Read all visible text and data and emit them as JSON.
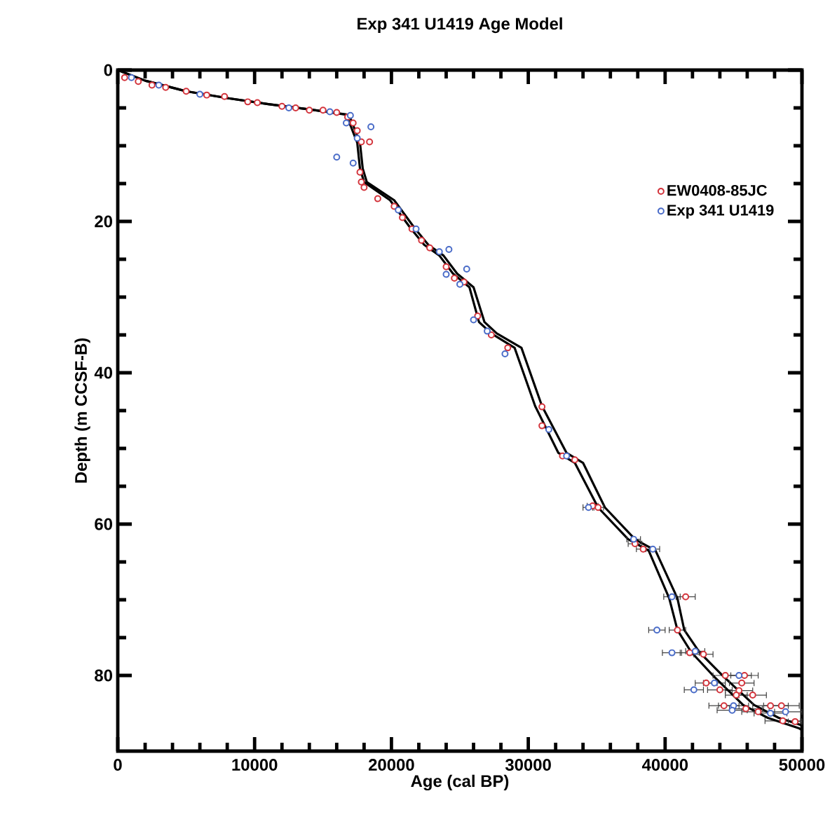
{
  "chart_data": {
    "type": "line",
    "title": "Exp 341 U1419 Age Model",
    "xlabel": "Age (cal BP)",
    "ylabel": "Depth (m CCSF-B)",
    "xlim": [
      0,
      50000
    ],
    "xticks": [
      0,
      10000,
      20000,
      30000,
      40000,
      50000
    ],
    "ylim": [
      90,
      0
    ],
    "yticks": [
      0,
      20,
      40,
      60,
      80
    ],
    "grid": false,
    "legend": "top right",
    "series": [
      {
        "color": "#000000",
        "marker": "none",
        "x": [
          0,
          2000,
          5000,
          8000,
          11000,
          14000,
          16700,
          17500,
          17700,
          18000,
          19900,
          21400,
          22400,
          23500,
          24500,
          25700,
          26400,
          27300,
          29000,
          30500,
          32200,
          33400,
          35100,
          37300,
          38800,
          40300,
          40900,
          41900,
          43600,
          45700,
          47500,
          49800,
          50000
        ],
        "values": [
          0,
          1.4,
          2.8,
          3.7,
          4.5,
          5.2,
          5.9,
          9.6,
          13,
          14.8,
          17.2,
          20.9,
          23.1,
          24.5,
          26.9,
          28.7,
          33.3,
          34.8,
          36.7,
          44.4,
          50.6,
          51.9,
          57.8,
          62,
          63.5,
          69.8,
          74,
          76.9,
          80.2,
          83.9,
          85.6,
          87,
          87.2
        ]
      },
      {
        "color": "#000000",
        "marker": "none",
        "x": [
          0,
          2000,
          5000,
          8000,
          11000,
          14000,
          16900,
          17700,
          17900,
          18200,
          20200,
          21700,
          22700,
          23800,
          24800,
          26000,
          26800,
          27700,
          29500,
          31000,
          32800,
          34000,
          35600,
          37800,
          39300,
          40900,
          41400,
          42500,
          44300,
          46500,
          48300,
          50000
        ],
        "values": [
          0,
          1.4,
          2.8,
          3.7,
          4.5,
          5.2,
          5.9,
          9.6,
          13,
          14.8,
          17.2,
          20.9,
          23.1,
          24.5,
          26.9,
          28.7,
          33.3,
          34.8,
          36.7,
          44.4,
          50.6,
          51.9,
          57.8,
          62,
          63.5,
          69.8,
          74,
          76.9,
          80.2,
          83.9,
          85.6,
          86.6
        ]
      },
      {
        "type": "scatter",
        "name": "EW0408-85JC",
        "color": "#d3343c",
        "marker": "circle",
        "x": [
          500,
          1500,
          2500,
          3500,
          5000,
          6500,
          7800,
          9500,
          10200,
          12000,
          13000,
          14000,
          15000,
          16000,
          16800,
          17200,
          17500,
          17800,
          18400,
          17700,
          17800,
          18000,
          19000,
          20200,
          20800,
          21500,
          22200,
          22800,
          24000,
          24600,
          25300,
          26300,
          27300,
          28500,
          31000,
          31000,
          32500,
          33400,
          34700,
          35100,
          37800,
          38400,
          41500,
          40900,
          41800,
          42800,
          44400,
          45800,
          43000,
          45600,
          44000,
          45400,
          45200,
          46400,
          44300,
          45900,
          47700,
          48500,
          46800,
          48600,
          49500
        ],
        "values": [
          1,
          1.5,
          2,
          2.3,
          2.8,
          3.3,
          3.5,
          4.2,
          4.3,
          4.8,
          5,
          5.3,
          5.3,
          5.6,
          6.2,
          7,
          8,
          9.5,
          9.5,
          13.5,
          14.8,
          15.5,
          17,
          18,
          19.5,
          21,
          22.5,
          23.5,
          26,
          27.5,
          28,
          32.5,
          35,
          36.7,
          44.5,
          47,
          51,
          51.5,
          57.6,
          57.8,
          62.6,
          63.3,
          69.6,
          74,
          77,
          77.2,
          80,
          80,
          81,
          81,
          81.9,
          82,
          82.6,
          82.6,
          84,
          84.4,
          84,
          84,
          84.8,
          86,
          86.1
        ],
        "xerrors": [
          null,
          null,
          null,
          null,
          null,
          null,
          null,
          null,
          null,
          null,
          null,
          null,
          null,
          null,
          null,
          null,
          null,
          null,
          null,
          null,
          null,
          null,
          null,
          null,
          null,
          null,
          null,
          null,
          null,
          null,
          null,
          null,
          null,
          null,
          null,
          null,
          null,
          null,
          400,
          400,
          500,
          500,
          700,
          600,
          700,
          700,
          900,
          1000,
          800,
          900,
          900,
          1000,
          800,
          1000,
          1100,
          1200,
          1300,
          1300,
          1200,
          1300,
          500
        ]
      },
      {
        "type": "scatter",
        "name": "Exp 341 U1419",
        "color": "#4a6cc8",
        "marker": "circle",
        "x": [
          1000,
          3000,
          6000,
          12500,
          15500,
          17000,
          16700,
          16000,
          17200,
          18500,
          17500,
          20500,
          21800,
          23500,
          24200,
          24000,
          25000,
          25500,
          26000,
          27000,
          28300,
          31500,
          32800,
          34400,
          37700,
          39100,
          40500,
          39400,
          40500,
          42200,
          45400,
          43600,
          42100,
          45000,
          44900,
          47700,
          48800
        ],
        "values": [
          1,
          2,
          3.2,
          5,
          5.5,
          6,
          7,
          11.5,
          12.3,
          7.5,
          9,
          18.5,
          21,
          24,
          23.7,
          27,
          28.3,
          26.3,
          33,
          34.5,
          37.5,
          47.5,
          51,
          57.8,
          62,
          63.3,
          69.6,
          74,
          77,
          76.8,
          80,
          81,
          81.9,
          84,
          84.6,
          85,
          84.8
        ],
        "xerrors": [
          null,
          null,
          null,
          null,
          null,
          null,
          null,
          null,
          null,
          null,
          null,
          null,
          null,
          null,
          null,
          null,
          null,
          null,
          null,
          null,
          null,
          null,
          null,
          400,
          500,
          500,
          600,
          600,
          700,
          700,
          900,
          800,
          700,
          1100,
          1100,
          1200,
          1200
        ]
      }
    ]
  }
}
